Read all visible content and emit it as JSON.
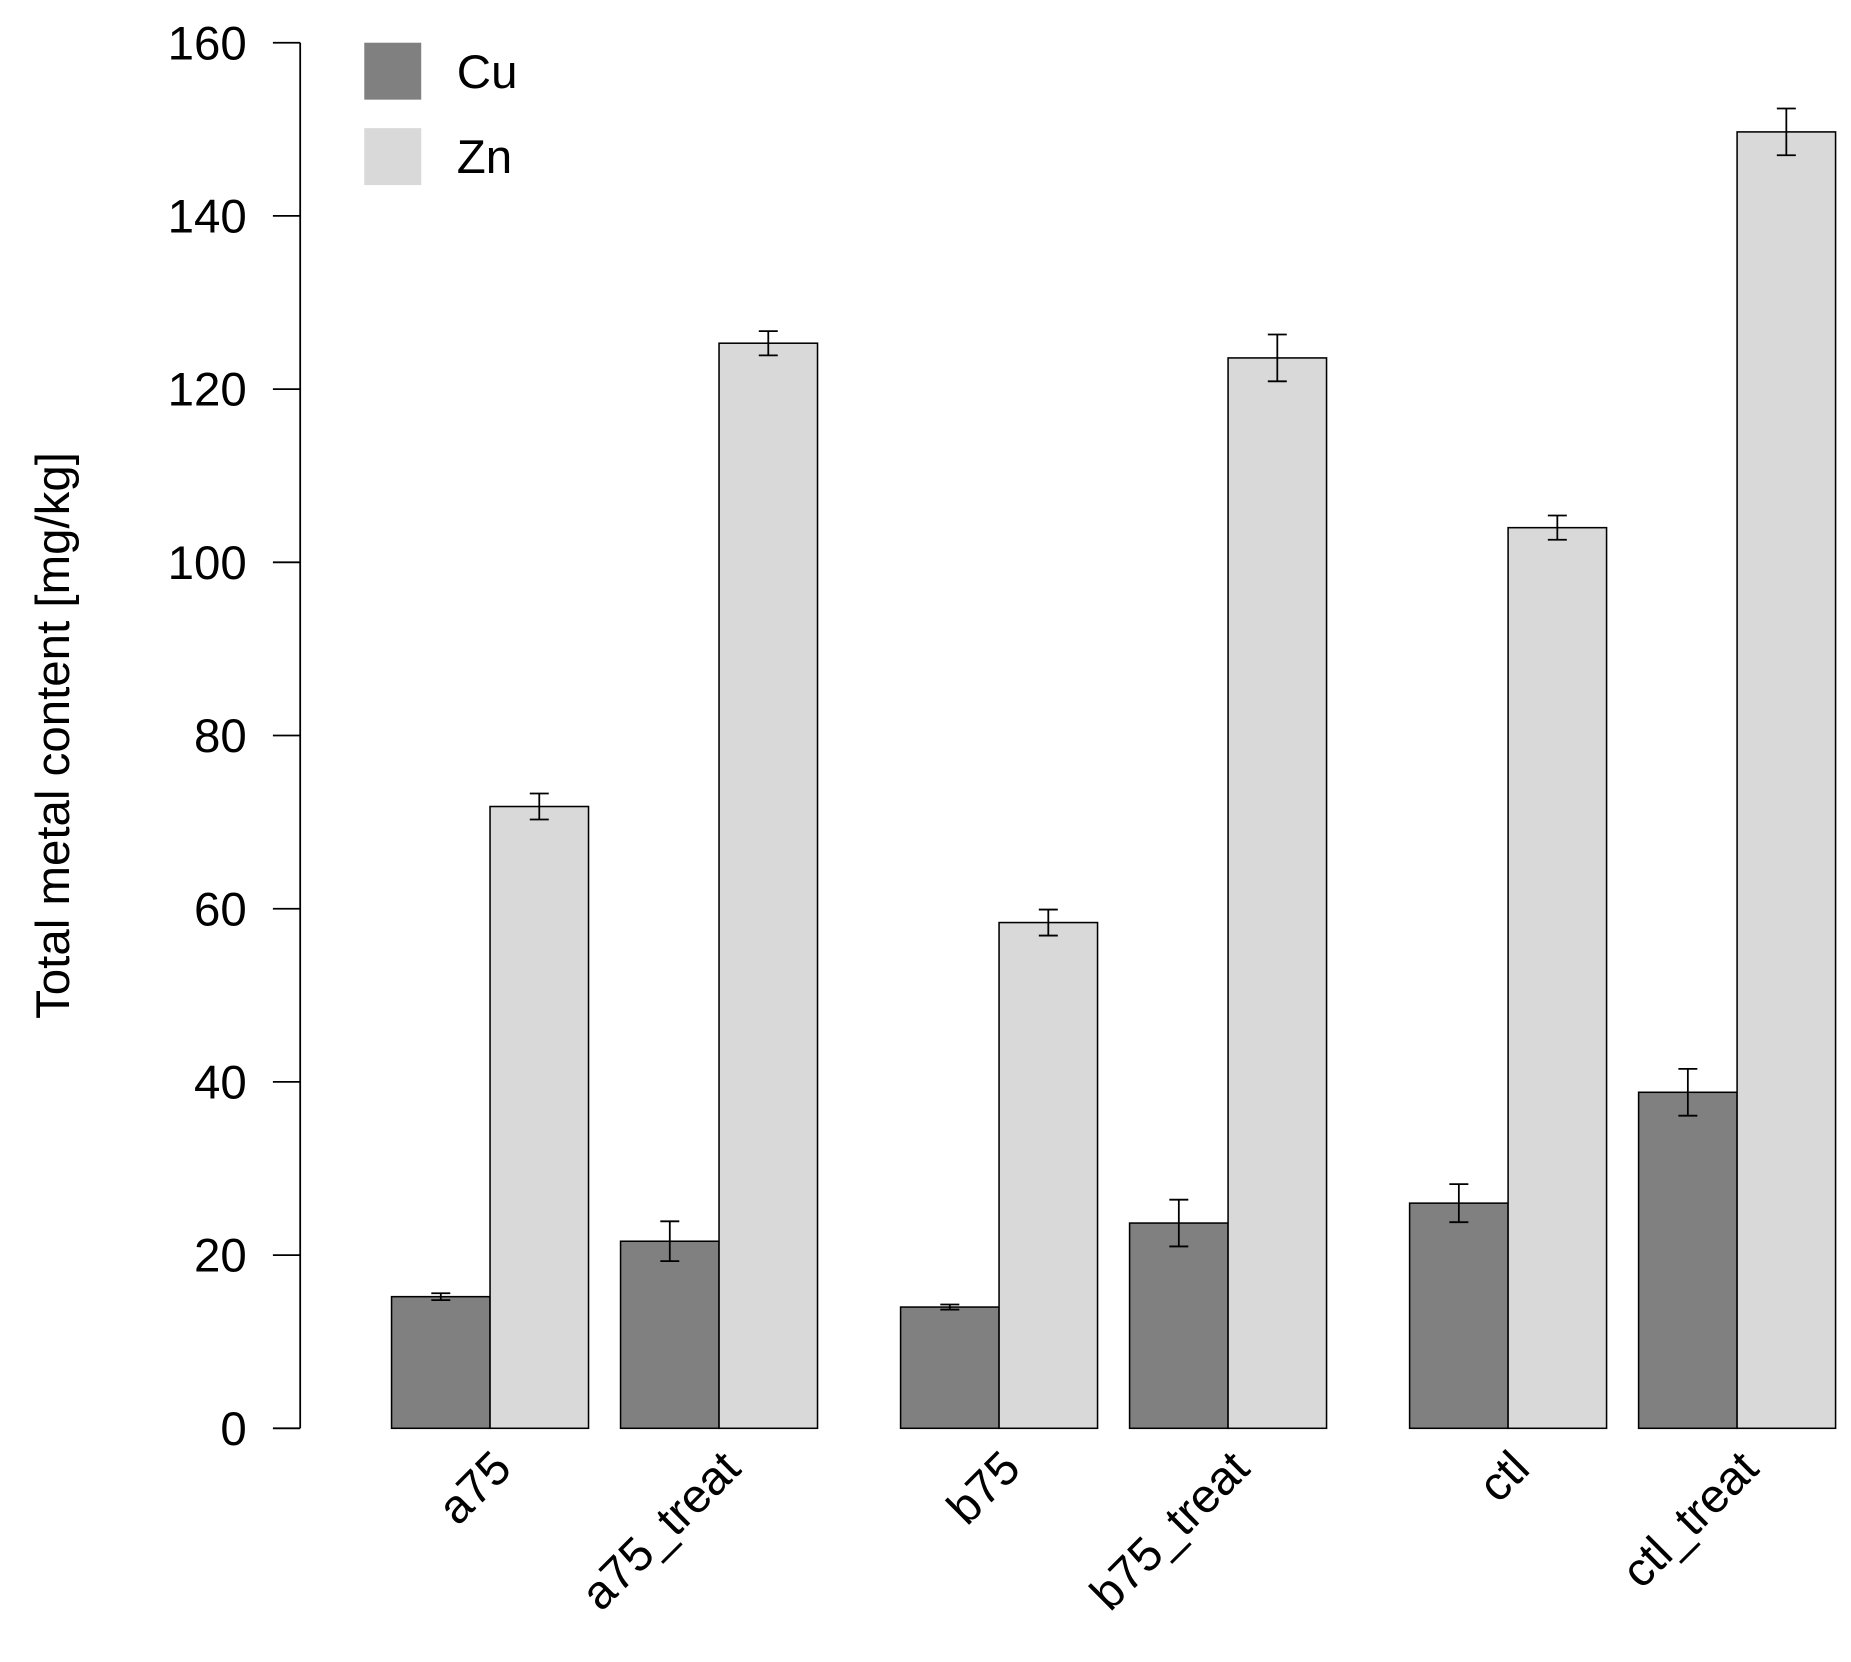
{
  "chart_data": {
    "type": "bar",
    "title": "",
    "xlabel": "",
    "ylabel": "Total metal content [mg/kg]",
    "ylim": [
      0,
      160
    ],
    "yticks": [
      0,
      20,
      40,
      60,
      80,
      100,
      120,
      140,
      160
    ],
    "grid": false,
    "legend_position": "top-left",
    "categories": [
      "a75",
      "a75_treat",
      "b75",
      "b75_treat",
      "ctl",
      "ctl_treat"
    ],
    "series": [
      {
        "name": "Cu",
        "color": "#808080",
        "values": [
          15.2,
          21.6,
          14.0,
          23.7,
          26.0,
          38.8
        ],
        "errors": [
          0.4,
          2.3,
          0.3,
          2.7,
          2.2,
          2.7
        ]
      },
      {
        "name": "Zn",
        "color": "#d9d9d9",
        "values": [
          71.8,
          125.3,
          58.4,
          123.6,
          104.0,
          149.7
        ],
        "errors": [
          1.5,
          1.4,
          1.5,
          2.7,
          1.4,
          2.7
        ]
      }
    ]
  }
}
